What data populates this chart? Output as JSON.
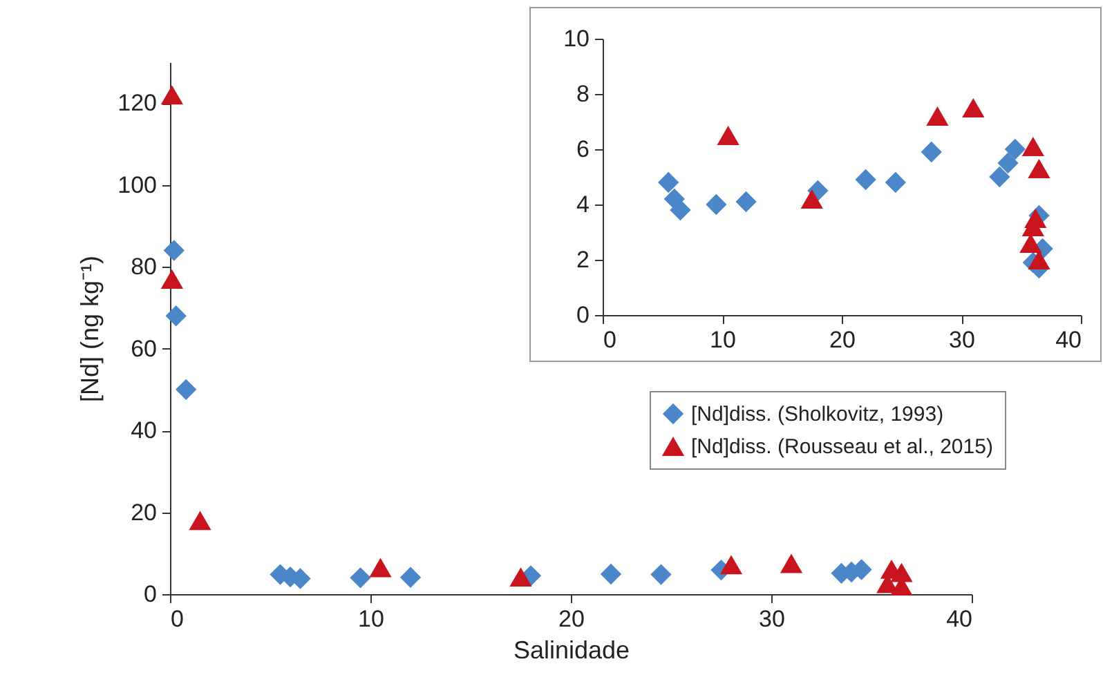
{
  "chart_data": [
    {
      "type": "scatter",
      "xlabel": "Salinidade",
      "ylabel": "[Nd] (ng kg⁻¹)",
      "xlim": [
        0,
        40
      ],
      "xticks": [
        0,
        10,
        20,
        30,
        40
      ],
      "ylim": [
        0,
        130
      ],
      "yticks": [
        0,
        20,
        40,
        60,
        80,
        100,
        120
      ],
      "legend": "right",
      "series": [
        {
          "name": "[Nd]diss. (Sholkovitz, 1993)",
          "color": "#4a86c8",
          "marker": "diamond",
          "x": [
            0.2,
            0.3,
            0.8,
            5.5,
            6,
            6.5,
            9.5,
            12,
            18,
            22,
            24.5,
            27.5,
            33.5,
            34,
            34.5
          ],
          "values": [
            84,
            68,
            50,
            4.8,
            4.2,
            3.8,
            4.0,
            4.1,
            4.5,
            4.9,
            4.8,
            5.9,
            5.1,
            5.4,
            6.0
          ]
        },
        {
          "name": "[Nd]diss. (Rousseau et al., 2015)",
          "color": "#c8141e",
          "marker": "triangle",
          "x": [
            0.1,
            0.1,
            1.5,
            10.5,
            17.5,
            28,
            31,
            36,
            36.5,
            35.8,
            36.5
          ],
          "values": [
            122,
            77,
            18,
            6.5,
            4.2,
            7.2,
            7.5,
            6.1,
            5.3,
            2.6,
            2.0
          ]
        }
      ]
    },
    {
      "type": "scatter",
      "xlim": [
        0,
        40
      ],
      "xticks": [
        0,
        10,
        20,
        30,
        40
      ],
      "ylim": [
        0,
        10
      ],
      "yticks": [
        0,
        2,
        4,
        6,
        8,
        10
      ],
      "series": [
        {
          "color": "#4a86c8",
          "marker": "diamond",
          "x": [
            5.5,
            6,
            6.5,
            9.5,
            12,
            18,
            22,
            24.5,
            27.5,
            33.2,
            33.9,
            34.5,
            36,
            36.5,
            36.5,
            36.8
          ],
          "values": [
            4.8,
            4.2,
            3.8,
            4.0,
            4.1,
            4.5,
            4.9,
            4.8,
            5.9,
            5.0,
            5.5,
            6.0,
            1.9,
            1.7,
            3.6,
            2.4
          ]
        },
        {
          "color": "#c8141e",
          "marker": "triangle",
          "x": [
            10.5,
            17.5,
            28,
            31,
            36,
            36.5,
            36.2,
            36,
            35.8,
            36.5
          ],
          "values": [
            6.5,
            4.2,
            7.2,
            7.5,
            6.1,
            5.3,
            3.5,
            3.2,
            2.6,
            2.0
          ]
        }
      ]
    }
  ]
}
